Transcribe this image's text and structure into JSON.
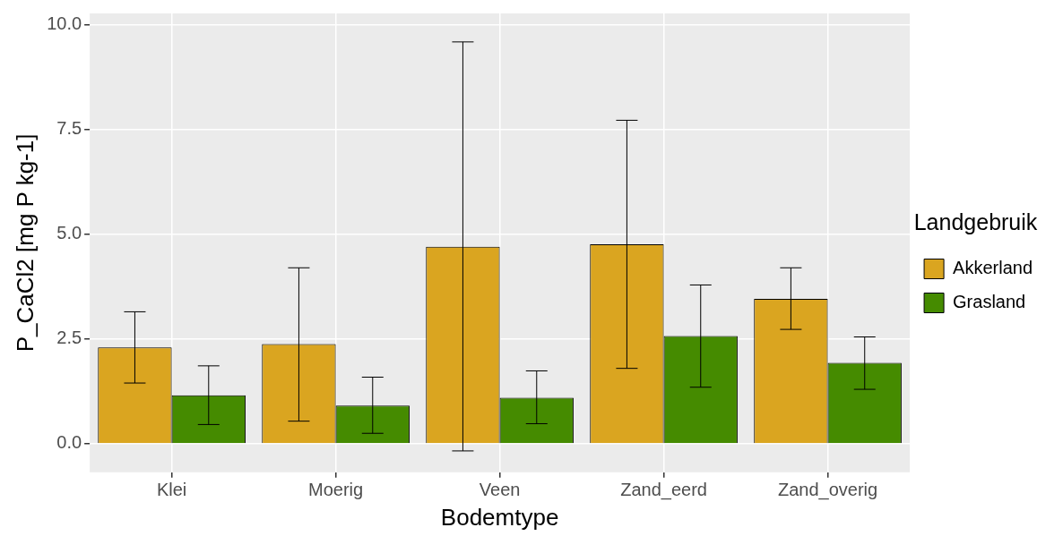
{
  "chart_data": {
    "type": "bar",
    "xlabel": "Bodemtype",
    "ylabel": "P_CaCl2 [mg P kg-1]",
    "legend_title": "Landgebruik",
    "legend": "right",
    "grid": true,
    "categories": [
      "Klei",
      "Moerig",
      "Veen",
      "Zand_eerd",
      "Zand_overig"
    ],
    "ylim": [
      -0.68,
      10.27
    ],
    "yticks": [
      {
        "value": 0,
        "label": "0.0"
      },
      {
        "value": 2.5,
        "label": "2.5"
      },
      {
        "value": 5,
        "label": "5.0"
      },
      {
        "value": 7.5,
        "label": "7.5"
      },
      {
        "value": 10,
        "label": "10.0"
      }
    ],
    "series": [
      {
        "name": "Akkerland",
        "color": "#daa520",
        "values": [
          2.3,
          2.38,
          4.7,
          4.76,
          3.46
        ],
        "errors": [
          [
            1.45,
            3.15
          ],
          [
            0.54,
            4.2
          ],
          [
            -0.17,
            9.59
          ],
          [
            1.8,
            7.72
          ],
          [
            2.73,
            4.2
          ]
        ]
      },
      {
        "name": "Grasland",
        "color": "#458b00",
        "values": [
          1.16,
          0.91,
          1.1,
          2.57,
          1.93
        ],
        "errors": [
          [
            0.46,
            1.86
          ],
          [
            0.25,
            1.59
          ],
          [
            0.48,
            1.74
          ],
          [
            1.35,
            3.79
          ],
          [
            1.3,
            2.55
          ]
        ]
      }
    ]
  }
}
